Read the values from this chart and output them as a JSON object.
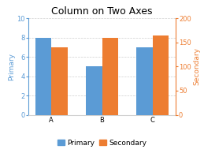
{
  "title": "Column on Two Axes",
  "categories": [
    "A",
    "B",
    "C"
  ],
  "primary_values": [
    8,
    5,
    7
  ],
  "secondary_values": [
    140,
    160,
    165
  ],
  "primary_color": "#5B9BD5",
  "secondary_color": "#ED7D31",
  "primary_label": "Primary",
  "secondary_label": "Secondary",
  "primary_ylim": [
    0,
    10
  ],
  "secondary_ylim": [
    0,
    200
  ],
  "primary_yticks": [
    0,
    2,
    4,
    6,
    8,
    10
  ],
  "secondary_yticks": [
    0,
    50,
    100,
    150,
    200
  ],
  "title_fontsize": 9,
  "axis_label_fontsize": 6.5,
  "tick_fontsize": 6,
  "legend_fontsize": 6.5,
  "background_color": "#ffffff",
  "bar_width": 0.32
}
